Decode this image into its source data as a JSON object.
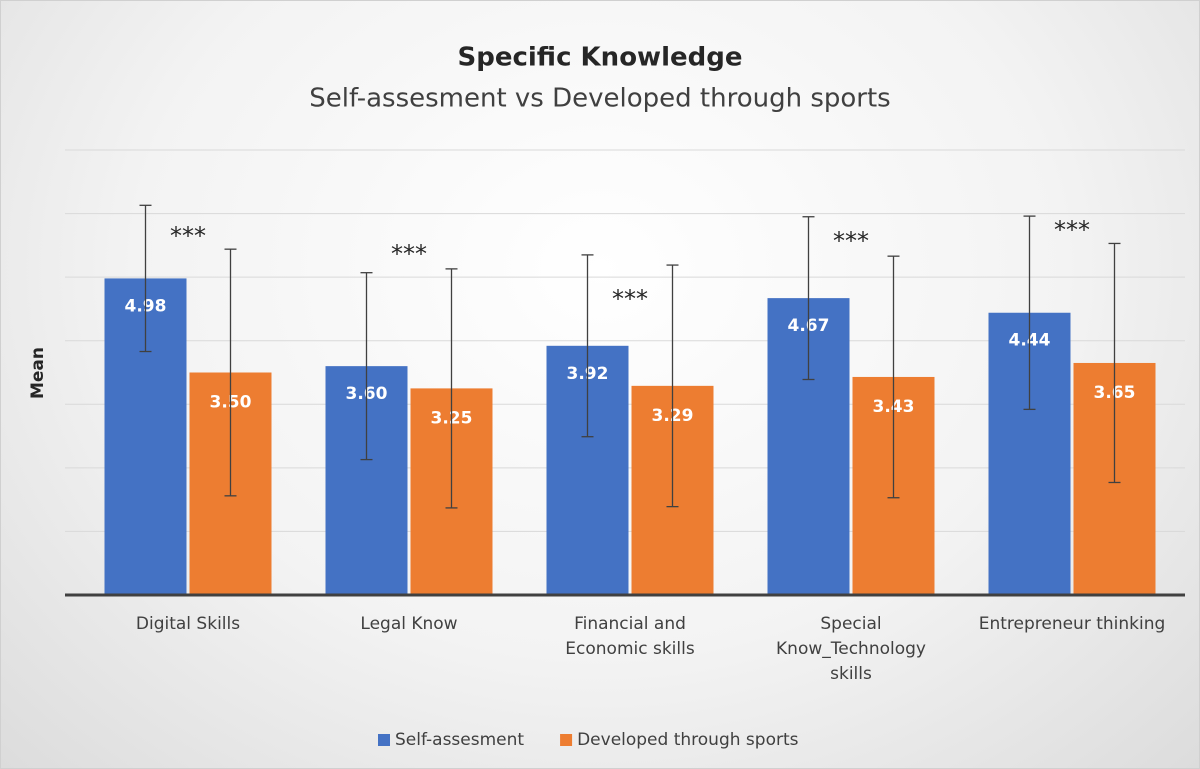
{
  "chart_data": {
    "type": "bar",
    "title": "Specific Knowledge",
    "subtitle": "Self-assesment vs Developed through sports",
    "y_label": "Mean",
    "categories": [
      "Digital Skills",
      "Legal Know",
      "Financial and Economic skills",
      "Special Know_Technology skills",
      "Entrepreneur thinking"
    ],
    "series": [
      {
        "name": "Self-assesment",
        "color": "#4472c4",
        "values": [
          4.98,
          3.6,
          3.92,
          4.67,
          4.44
        ],
        "value_labels": [
          "4.98",
          "3.60",
          "3.92",
          "4.67",
          "4.44"
        ],
        "errors": [
          1.15,
          1.47,
          1.43,
          1.28,
          1.52
        ]
      },
      {
        "name": "Developed through sports",
        "color": "#ed7d31",
        "values": [
          3.5,
          3.25,
          3.29,
          3.43,
          3.65
        ],
        "value_labels": [
          "3.50",
          "3.25",
          "3.29",
          "3.43",
          "3.65"
        ],
        "errors": [
          1.94,
          1.88,
          1.9,
          1.9,
          1.88
        ]
      }
    ],
    "annotations": [
      "***",
      "***",
      "***",
      "***",
      "***"
    ],
    "ylim": [
      0,
      7
    ],
    "yticks": [
      0,
      1,
      2,
      3,
      4,
      5,
      6,
      7
    ],
    "grid": true,
    "legend": "bottom"
  }
}
